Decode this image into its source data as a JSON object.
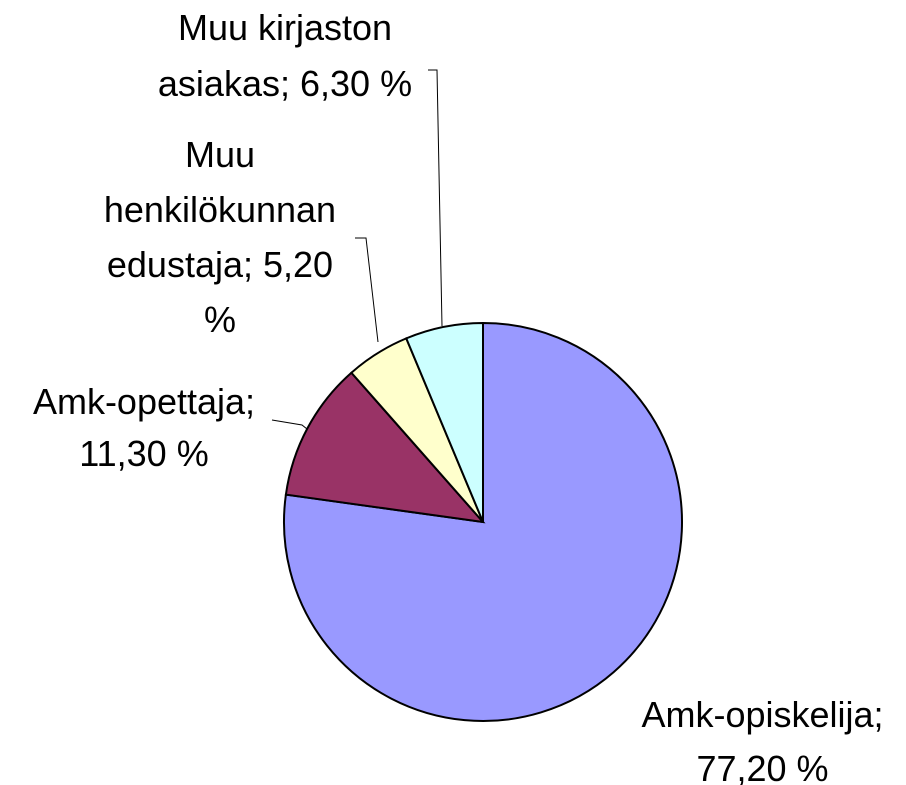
{
  "chart_data": {
    "type": "pie",
    "categories": [
      "Amk-opiskelija;",
      "Amk-opettaja;",
      "Muu henkilökunnan edustaja;",
      "Muu kirjaston asiakas;"
    ],
    "values": [
      77.2,
      11.3,
      5.2,
      6.3
    ],
    "value_labels": [
      "77,20 %",
      "11,30 %",
      "5,20 %",
      "6,30 %"
    ],
    "colors": [
      "#9999ff",
      "#993366",
      "#ffffcc",
      "#ccffff"
    ]
  }
}
